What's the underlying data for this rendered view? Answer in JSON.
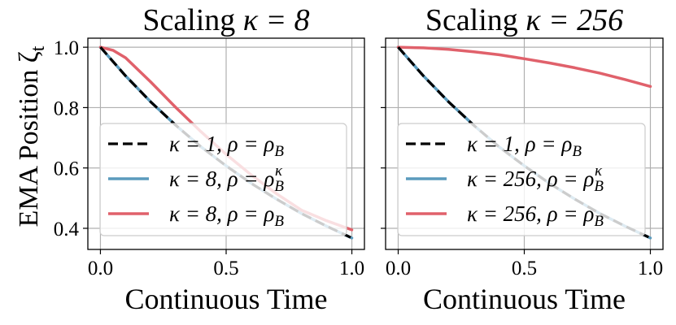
{
  "figure": {
    "ylabel": "EMA Position ζ",
    "ylabel_sub": "t"
  },
  "chart_data": [
    {
      "type": "line",
      "title_prefix": "Scaling ",
      "title_math": "κ = 8",
      "xlabel": "Continuous Time",
      "xlim": [
        -0.05,
        1.05
      ],
      "ylim": [
        0.33,
        1.03
      ],
      "xticks": [
        0.0,
        0.5,
        1.0
      ],
      "xtick_labels": [
        "0.0",
        "0.5",
        "1.0"
      ],
      "yticks": [
        0.4,
        0.6,
        0.8,
        1.0
      ],
      "ytick_labels": [
        "0.4",
        "0.6",
        "0.8",
        "1.0"
      ],
      "grid": true,
      "legend_position": "lower-left",
      "series": [
        {
          "name": "κ = 8, ρ = ρ_B^κ",
          "label_pre": "κ = 8, ρ = ρ",
          "label_sub": "B",
          "label_sup": "κ",
          "color": "#5b9bbd",
          "dash": "solid",
          "x": [
            0.0,
            0.1,
            0.2,
            0.3,
            0.4,
            0.5,
            0.6,
            0.7,
            0.8,
            0.9,
            1.0
          ],
          "y": [
            1.0,
            0.905,
            0.819,
            0.741,
            0.67,
            0.607,
            0.549,
            0.497,
            0.449,
            0.407,
            0.368
          ]
        },
        {
          "name": "κ = 8, ρ = ρ_B",
          "label_pre": "κ = 8, ρ = ρ",
          "label_sub": "B",
          "label_sup": "",
          "color": "#e0616b",
          "dash": "solid",
          "x": [
            0.0,
            0.05,
            0.1,
            0.2,
            0.3,
            0.4,
            0.5,
            0.6,
            0.7,
            0.8,
            0.9,
            1.0
          ],
          "y": [
            1.0,
            0.99,
            0.965,
            0.885,
            0.8,
            0.72,
            0.645,
            0.577,
            0.515,
            0.46,
            0.425,
            0.395
          ]
        },
        {
          "name": "κ = 1, ρ = ρ_B",
          "label_pre": "κ = 1, ρ = ρ",
          "label_sub": "B",
          "label_sup": "",
          "color": "#000000",
          "dash": "dashed",
          "x": [
            0.0,
            0.1,
            0.2,
            0.3,
            0.4,
            0.5,
            0.6,
            0.7,
            0.8,
            0.9,
            1.0
          ],
          "y": [
            1.0,
            0.905,
            0.819,
            0.741,
            0.67,
            0.607,
            0.549,
            0.497,
            0.449,
            0.407,
            0.368
          ]
        }
      ],
      "legend_order": [
        2,
        0,
        1
      ]
    },
    {
      "type": "line",
      "title_prefix": "Scaling ",
      "title_math": "κ = 256",
      "xlabel": "Continuous Time",
      "xlim": [
        -0.05,
        1.05
      ],
      "ylim": [
        0.33,
        1.03
      ],
      "xticks": [
        0.0,
        0.5,
        1.0
      ],
      "xtick_labels": [
        "0.0",
        "0.5",
        "1.0"
      ],
      "yticks": [
        0.4,
        0.6,
        0.8,
        1.0
      ],
      "ytick_labels": [],
      "grid": true,
      "legend_position": "lower-left",
      "series": [
        {
          "name": "κ = 256, ρ = ρ_B^κ",
          "label_pre": "κ = 256, ρ = ρ",
          "label_sub": "B",
          "label_sup": "κ",
          "color": "#5b9bbd",
          "dash": "solid",
          "x": [
            0.0,
            0.1,
            0.2,
            0.3,
            0.4,
            0.5,
            0.6,
            0.7,
            0.8,
            0.9,
            1.0
          ],
          "y": [
            1.0,
            0.905,
            0.819,
            0.741,
            0.67,
            0.607,
            0.549,
            0.497,
            0.449,
            0.407,
            0.368
          ]
        },
        {
          "name": "κ = 256, ρ = ρ_B",
          "label_pre": "κ = 256, ρ = ρ",
          "label_sub": "B",
          "label_sup": "",
          "color": "#e0616b",
          "dash": "solid",
          "x": [
            0.0,
            0.1,
            0.2,
            0.3,
            0.4,
            0.5,
            0.6,
            0.7,
            0.8,
            0.9,
            1.0
          ],
          "y": [
            1.0,
            0.998,
            0.993,
            0.985,
            0.975,
            0.962,
            0.948,
            0.932,
            0.914,
            0.893,
            0.87
          ]
        },
        {
          "name": "κ = 1, ρ = ρ_B",
          "label_pre": "κ = 1, ρ = ρ",
          "label_sub": "B",
          "label_sup": "",
          "color": "#000000",
          "dash": "dashed",
          "x": [
            0.0,
            0.1,
            0.2,
            0.3,
            0.4,
            0.5,
            0.6,
            0.7,
            0.8,
            0.9,
            1.0
          ],
          "y": [
            1.0,
            0.905,
            0.819,
            0.741,
            0.67,
            0.607,
            0.549,
            0.497,
            0.449,
            0.407,
            0.368
          ]
        }
      ],
      "legend_order": [
        2,
        0,
        1
      ]
    }
  ]
}
